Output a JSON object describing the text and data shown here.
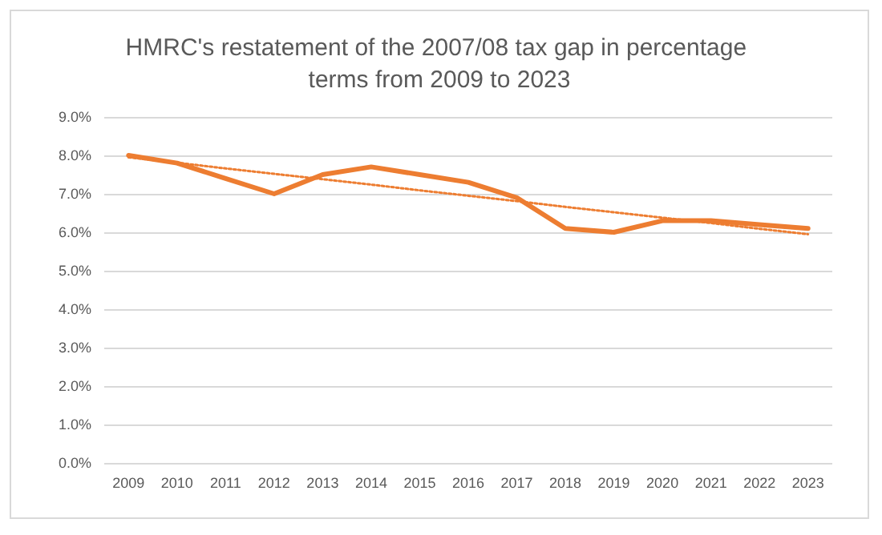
{
  "chart_data": {
    "type": "line",
    "title": "HMRC's restatement of the 2007/08 tax gap in percentage terms from 2009 to 2023",
    "categories": [
      "2009",
      "2010",
      "2011",
      "2012",
      "2013",
      "2014",
      "2015",
      "2016",
      "2017",
      "2018",
      "2019",
      "2020",
      "2021",
      "2022",
      "2023"
    ],
    "series": [
      {
        "color": "#ed7d31",
        "values": [
          8.0,
          7.8,
          7.4,
          7.0,
          7.5,
          7.7,
          7.5,
          7.3,
          6.9,
          6.1,
          6.0,
          6.3,
          6.3,
          6.2,
          6.1
        ]
      },
      {
        "color": "#ed7d31",
        "line_style": "dotted",
        "values": [
          7.95,
          7.81,
          7.66,
          7.52,
          7.38,
          7.24,
          7.09,
          6.95,
          6.81,
          6.66,
          6.52,
          6.38,
          6.24,
          6.09,
          5.95
        ]
      }
    ],
    "ylim": [
      0,
      9
    ],
    "yticks": [
      {
        "value": 0,
        "label": "0.0%"
      },
      {
        "value": 1,
        "label": "1.0%"
      },
      {
        "value": 2,
        "label": "2.0%"
      },
      {
        "value": 3,
        "label": "3.0%"
      },
      {
        "value": 4,
        "label": "4.0%"
      },
      {
        "value": 5,
        "label": "5.0%"
      },
      {
        "value": 6,
        "label": "6.0%"
      },
      {
        "value": 7,
        "label": "7.0%"
      },
      {
        "value": 8,
        "label": "8.0%"
      },
      {
        "value": 9,
        "label": "9.0%"
      }
    ],
    "grid": "y",
    "marker": "none"
  }
}
